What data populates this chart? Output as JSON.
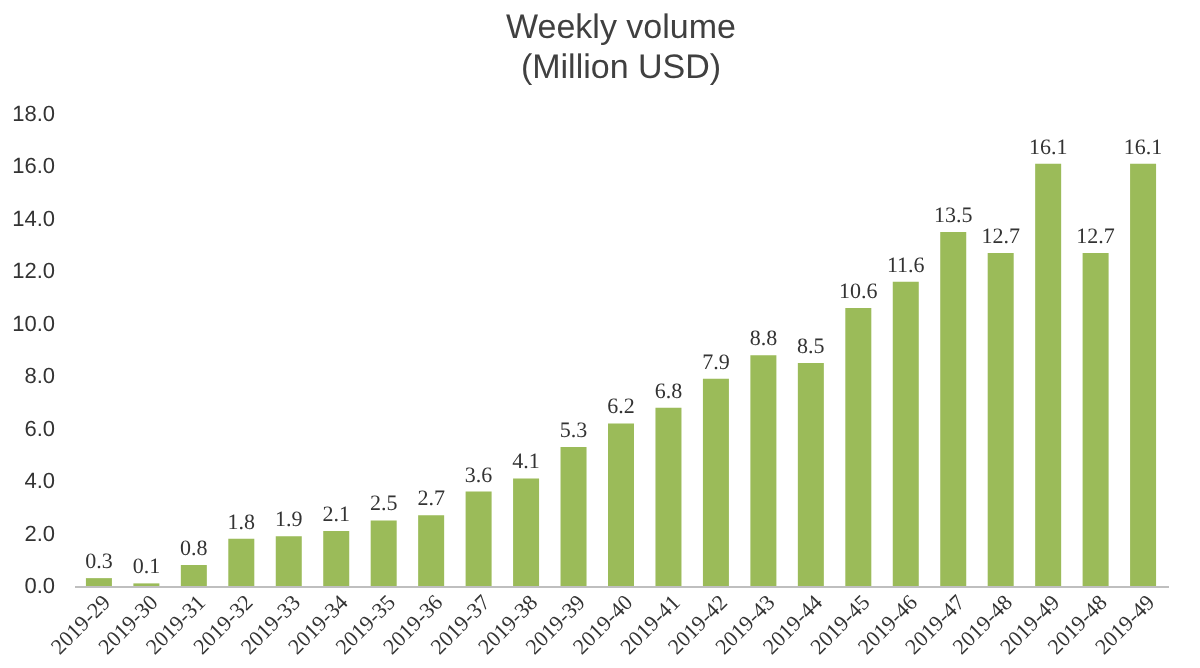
{
  "chart_data": {
    "type": "bar",
    "title": "Weekly volume",
    "subtitle": "(Million USD)",
    "categories": [
      "2019-29",
      "2019-30",
      "2019-31",
      "2019-32",
      "2019-33",
      "2019-34",
      "2019-35",
      "2019-36",
      "2019-37",
      "2019-38",
      "2019-39",
      "2019-40",
      "2019-41",
      "2019-42",
      "2019-43",
      "2019-44",
      "2019-45",
      "2019-46",
      "2019-47",
      "2019-48",
      "2019-49",
      "2019-48",
      "2019-49"
    ],
    "values": [
      0.3,
      0.1,
      0.8,
      1.8,
      1.9,
      2.1,
      2.5,
      2.7,
      3.6,
      4.1,
      5.3,
      6.2,
      6.8,
      7.9,
      8.8,
      8.5,
      10.6,
      11.6,
      13.5,
      12.7,
      16.1,
      12.7,
      16.1
    ],
    "color": "#9bbb59",
    "ylim": [
      0,
      18
    ],
    "yticks": [
      {
        "value": 0,
        "label": "0.0"
      },
      {
        "value": 2,
        "label": "2.0"
      },
      {
        "value": 4,
        "label": "4.0"
      },
      {
        "value": 6,
        "label": "6.0"
      },
      {
        "value": 8,
        "label": "8.0"
      },
      {
        "value": 10,
        "label": "10.0"
      },
      {
        "value": 12,
        "label": "12.0"
      },
      {
        "value": 14,
        "label": "14.0"
      },
      {
        "value": 16,
        "label": "16.0"
      },
      {
        "value": 18,
        "label": "18.0"
      }
    ],
    "grid": false,
    "data_labels": true
  }
}
